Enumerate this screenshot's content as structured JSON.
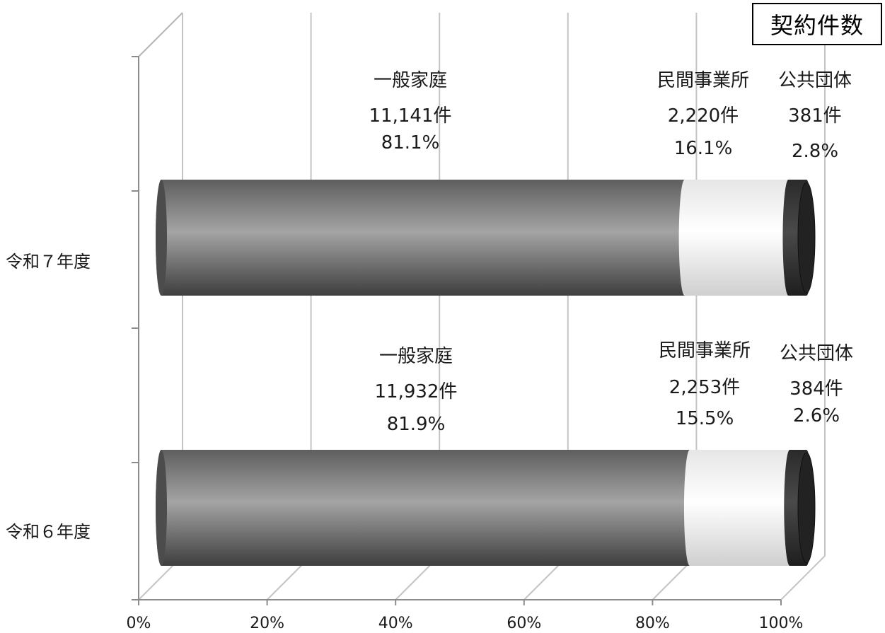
{
  "chart_data": {
    "type": "bar",
    "orientation": "horizontal",
    "stacked": "percent",
    "style": "3d-cylinder",
    "title": "契約件数",
    "categories": [
      "令和７年度",
      "令和６年度"
    ],
    "series": [
      {
        "name": "一般家庭",
        "color": "#8a8a8a",
        "values": [
          81.1,
          81.9
        ],
        "count_labels": [
          "11,141件",
          "11,932件"
        ],
        "percent_labels": [
          "81.1%",
          "81.9%"
        ]
      },
      {
        "name": "民間事業所",
        "color": "#ffffff",
        "values": [
          16.1,
          15.5
        ],
        "count_labels": [
          "2,220件",
          "2,253件"
        ],
        "percent_labels": [
          "16.1%",
          "15.5%"
        ]
      },
      {
        "name": "公共団体",
        "color": "#3a3a3a",
        "values": [
          2.8,
          2.6
        ],
        "count_labels": [
          "381件",
          "384件"
        ],
        "percent_labels": [
          "2.8%",
          "2.6%"
        ]
      }
    ],
    "x_ticks": [
      "0%",
      "20%",
      "40%",
      "60%",
      "80%",
      "100%"
    ],
    "xlim": [
      0,
      100
    ],
    "grid": true,
    "legend": "none"
  }
}
